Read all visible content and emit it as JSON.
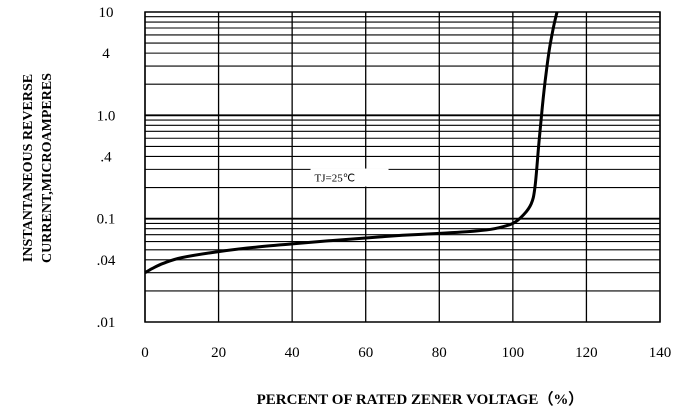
{
  "chart_data": {
    "type": "line",
    "title": "",
    "xlabel": "PERCENT OF RATED ZENER VOLTAGE（%）",
    "ylabel_lines": [
      "INSTANTANEOUS REVERSE",
      "CURRENT,MICROAMPERES"
    ],
    "x_scale": "linear",
    "y_scale": "log",
    "xlim": [
      0,
      140
    ],
    "ylim": [
      0.01,
      10
    ],
    "x_ticks": [
      0,
      20,
      40,
      60,
      80,
      100,
      120,
      140
    ],
    "x_tick_labels": [
      "0",
      "20",
      "40",
      "60",
      "80",
      "100",
      "120",
      "140"
    ],
    "y_ticks": [
      0.01,
      0.04,
      0.1,
      0.4,
      1.0,
      4,
      10
    ],
    "y_tick_labels": [
      ".01",
      ".04",
      "0.1",
      ".4",
      "1.0",
      "4",
      "10"
    ],
    "grid": true,
    "annotation": {
      "text": "TJ=25℃",
      "at": [
        45,
        0.25
      ]
    },
    "series": [
      {
        "x": [
          0,
          2,
          5,
          10,
          20,
          30,
          40,
          50,
          60,
          70,
          80,
          90,
          95,
          100,
          103,
          105,
          106,
          107,
          108,
          109,
          110,
          111,
          112
        ],
        "y": [
          0.03,
          0.033,
          0.037,
          0.042,
          0.048,
          0.053,
          0.057,
          0.061,
          0.065,
          0.069,
          0.072,
          0.076,
          0.08,
          0.09,
          0.11,
          0.14,
          0.2,
          0.5,
          1.2,
          2.5,
          4.5,
          7,
          10
        ]
      }
    ]
  }
}
